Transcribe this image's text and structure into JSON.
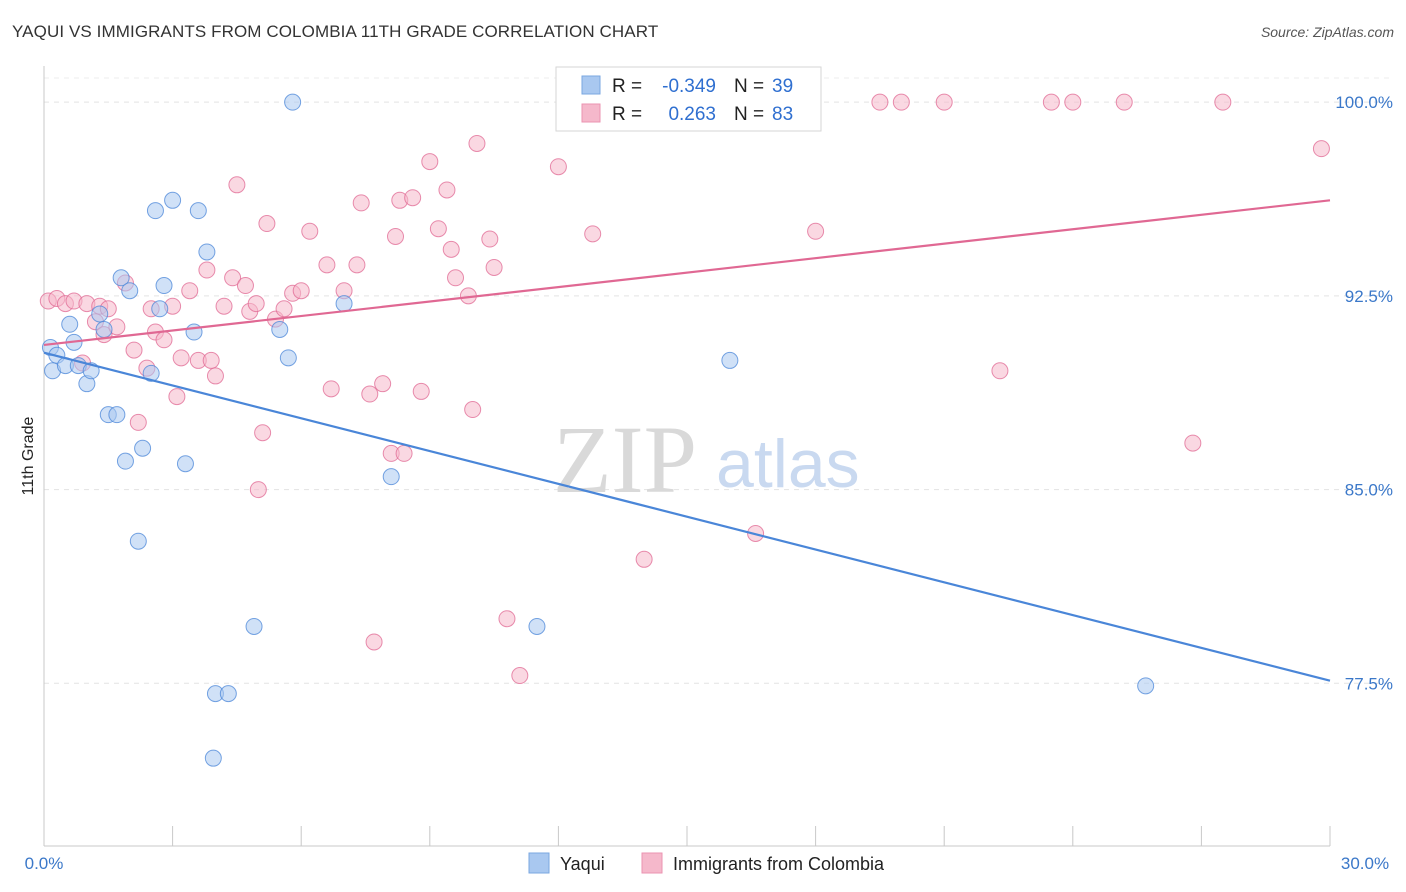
{
  "header": {
    "title": "YAQUI VS IMMIGRANTS FROM COLOMBIA 11TH GRADE CORRELATION CHART",
    "source": "Source: ZipAtlas.com"
  },
  "watermark": {
    "zip": "ZIP",
    "atlas": "atlas"
  },
  "stats_box": {
    "rows": [
      {
        "r_label": "R =",
        "r_value": "-0.349",
        "n_label": "N =",
        "n_value": "39",
        "color": "#a9c8f0"
      },
      {
        "r_label": "R =",
        "r_value": "0.263",
        "n_label": "N =",
        "n_value": "83",
        "color": "#f5b8cb"
      }
    ]
  },
  "legend": {
    "items": [
      {
        "label": "Yaqui",
        "color": "#a9c8f0"
      },
      {
        "label": "Immigrants from Colombia",
        "color": "#f5b8cb"
      }
    ]
  },
  "chart_data": {
    "type": "scatter",
    "title": "YAQUI VS IMMIGRANTS FROM COLOMBIA 11TH GRADE CORRELATION CHART",
    "xlabel": "",
    "ylabel": "11th Grade",
    "xlim": [
      0,
      30
    ],
    "ylim": [
      71.2,
      101.4
    ],
    "x_tick_labels": [
      "0.0%",
      "30.0%"
    ],
    "y_ticks": [
      77.5,
      85.0,
      92.5,
      100.0
    ],
    "y_tick_labels": [
      "77.5%",
      "85.0%",
      "92.5%",
      "100.0%"
    ],
    "grid": "horizontal dashed",
    "legend_position": "bottom-center",
    "series": [
      {
        "name": "Yaqui",
        "color": "#4a86d8",
        "fill": "#a9c8f0",
        "trend": {
          "x": [
            0,
            30
          ],
          "y": [
            90.3,
            77.6
          ]
        },
        "points": [
          [
            0.15,
            90.5
          ],
          [
            0.2,
            89.6
          ],
          [
            0.3,
            90.2
          ],
          [
            0.5,
            89.8
          ],
          [
            0.6,
            91.4
          ],
          [
            0.7,
            90.7
          ],
          [
            0.8,
            89.8
          ],
          [
            1.0,
            89.1
          ],
          [
            1.1,
            89.6
          ],
          [
            1.3,
            91.8
          ],
          [
            1.4,
            91.2
          ],
          [
            1.5,
            87.9
          ],
          [
            1.7,
            87.9
          ],
          [
            1.8,
            93.2
          ],
          [
            1.9,
            86.1
          ],
          [
            2.0,
            92.7
          ],
          [
            2.2,
            83.0
          ],
          [
            2.3,
            86.6
          ],
          [
            2.5,
            89.5
          ],
          [
            2.6,
            95.8
          ],
          [
            2.7,
            92.0
          ],
          [
            2.8,
            92.9
          ],
          [
            3.0,
            96.2
          ],
          [
            3.3,
            86.0
          ],
          [
            3.5,
            91.1
          ],
          [
            3.6,
            95.8
          ],
          [
            3.8,
            94.2
          ],
          [
            3.95,
            74.6
          ],
          [
            4.0,
            77.1
          ],
          [
            4.3,
            77.1
          ],
          [
            4.9,
            79.7
          ],
          [
            5.5,
            91.2
          ],
          [
            5.7,
            90.1
          ],
          [
            5.8,
            100.0
          ],
          [
            7.0,
            92.2
          ],
          [
            8.1,
            85.5
          ],
          [
            11.5,
            79.7
          ],
          [
            16.0,
            90.0
          ],
          [
            25.7,
            77.4
          ]
        ]
      },
      {
        "name": "Immigrants from Colombia",
        "color": "#e06893",
        "fill": "#f5b8cb",
        "trend": {
          "x": [
            0,
            30
          ],
          "y": [
            90.6,
            96.2
          ]
        },
        "points": [
          [
            0.1,
            92.3
          ],
          [
            0.3,
            92.4
          ],
          [
            0.5,
            92.2
          ],
          [
            0.7,
            92.3
          ],
          [
            0.9,
            89.9
          ],
          [
            1.0,
            92.2
          ],
          [
            1.2,
            91.5
          ],
          [
            1.3,
            92.1
          ],
          [
            1.4,
            91.0
          ],
          [
            1.5,
            92.0
          ],
          [
            1.7,
            91.3
          ],
          [
            1.9,
            93.0
          ],
          [
            2.1,
            90.4
          ],
          [
            2.2,
            87.6
          ],
          [
            2.4,
            89.7
          ],
          [
            2.5,
            92.0
          ],
          [
            2.6,
            91.1
          ],
          [
            2.8,
            90.8
          ],
          [
            3.0,
            92.1
          ],
          [
            3.1,
            88.6
          ],
          [
            3.2,
            90.1
          ],
          [
            3.4,
            92.7
          ],
          [
            3.6,
            90.0
          ],
          [
            3.8,
            93.5
          ],
          [
            3.9,
            90.0
          ],
          [
            4.0,
            89.4
          ],
          [
            4.2,
            92.1
          ],
          [
            4.4,
            93.2
          ],
          [
            4.5,
            96.8
          ],
          [
            4.7,
            92.9
          ],
          [
            4.8,
            91.9
          ],
          [
            4.95,
            92.2
          ],
          [
            5.0,
            85.0
          ],
          [
            5.1,
            87.2
          ],
          [
            5.2,
            95.3
          ],
          [
            5.4,
            91.6
          ],
          [
            5.6,
            92.0
          ],
          [
            5.8,
            92.6
          ],
          [
            6.0,
            92.7
          ],
          [
            6.2,
            95.0
          ],
          [
            6.6,
            93.7
          ],
          [
            6.7,
            88.9
          ],
          [
            7.0,
            92.7
          ],
          [
            7.3,
            93.7
          ],
          [
            7.4,
            96.1
          ],
          [
            7.6,
            88.7
          ],
          [
            7.7,
            79.1
          ],
          [
            7.9,
            89.1
          ],
          [
            8.1,
            86.4
          ],
          [
            8.2,
            94.8
          ],
          [
            8.3,
            96.2
          ],
          [
            8.4,
            86.4
          ],
          [
            8.6,
            96.3
          ],
          [
            8.8,
            88.8
          ],
          [
            9.0,
            97.7
          ],
          [
            9.2,
            95.1
          ],
          [
            9.4,
            96.6
          ],
          [
            9.5,
            94.3
          ],
          [
            9.6,
            93.2
          ],
          [
            9.9,
            92.5
          ],
          [
            10.0,
            88.1
          ],
          [
            10.1,
            98.4
          ],
          [
            10.4,
            94.7
          ],
          [
            10.5,
            93.6
          ],
          [
            10.8,
            80.0
          ],
          [
            11.1,
            77.8
          ],
          [
            12.0,
            97.5
          ],
          [
            12.3,
            100.0
          ],
          [
            12.8,
            94.9
          ],
          [
            14.0,
            82.3
          ],
          [
            16.5,
            100.0
          ],
          [
            16.6,
            83.3
          ],
          [
            18.0,
            95.0
          ],
          [
            19.5,
            100.0
          ],
          [
            20.0,
            100.0
          ],
          [
            21.0,
            100.0
          ],
          [
            22.3,
            89.6
          ],
          [
            23.5,
            100.0
          ],
          [
            24.0,
            100.0
          ],
          [
            25.2,
            100.0
          ],
          [
            26.8,
            86.8
          ],
          [
            27.5,
            100.0
          ],
          [
            29.8,
            98.2
          ]
        ]
      }
    ]
  }
}
